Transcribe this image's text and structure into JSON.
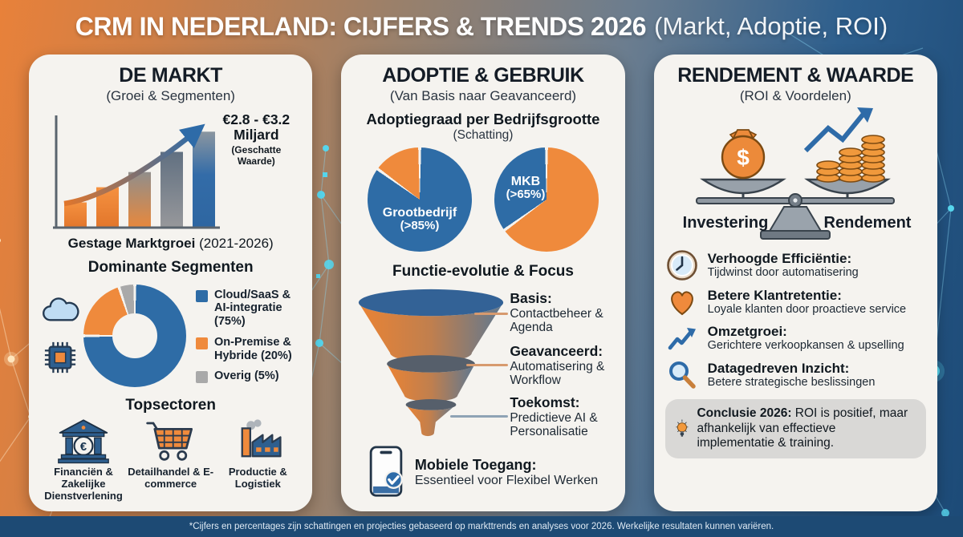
{
  "header": {
    "title_main": "CRM IN NEDERLAND: CIJFERS & TRENDS 2026",
    "title_suffix": "(Markt, Adoptie, ROI)"
  },
  "panels": {
    "markt": {
      "title": "DE MARKT",
      "subtitle": "(Groei & Segmenten)",
      "value_annotation": "€2.8 - €3.2 Miljard",
      "value_annotation_sub": "(Geschatte Waarde)",
      "growth_caption": "Gestage Marktgroei",
      "growth_caption_years": " (2021-2026)",
      "segments_title": "Dominante Segmenten",
      "topsectors_title": "Topsectoren",
      "sectors": [
        {
          "label": "Financiën & Zakelijke Dienstverlening"
        },
        {
          "label": "Detailhandel & E-commerce"
        },
        {
          "label": "Productie & Logistiek"
        }
      ]
    },
    "adoptie": {
      "title": "ADOPTIE & GEBRUIK",
      "subtitle": "(Van Basis naar Geavanceerd)",
      "adoption_title": "Adoptiegraad per Bedrijfsgrootte",
      "adoption_subtitle": "(Schatting)",
      "funnel_title": "Functie-evolutie & Focus",
      "funnel_stages": [
        {
          "label": "Basis:",
          "desc": "Contactbeheer & Agenda"
        },
        {
          "label": "Geavanceerd:",
          "desc": "Automatisering & Workflow"
        },
        {
          "label": "Toekomst:",
          "desc": "Predictieve AI & Personalisatie"
        }
      ],
      "mobile_title": "Mobiele Toegang:",
      "mobile_desc": "Essentieel voor Flexibel Werken"
    },
    "rendement": {
      "title": "RENDEMENT & WAARDE",
      "subtitle": "(ROI & Voordelen)",
      "scale_left_label": "Investering",
      "scale_right_label": "Rendement",
      "benefits": [
        {
          "title": "Verhoogde Efficiëntie:",
          "desc": "Tijdwinst door automatisering"
        },
        {
          "title": "Betere Klantretentie:",
          "desc": "Loyale klanten door proactieve service"
        },
        {
          "title": "Omzetgroei:",
          "desc": "Gerichtere verkoopkansen & upselling"
        },
        {
          "title": "Datagedreven Inzicht:",
          "desc": "Betere strategische beslissingen"
        }
      ],
      "conclusion_label": "Conclusie 2026:",
      "conclusion_text": " ROI is positief, maar afhankelijk van effectieve implementatie & training."
    }
  },
  "footer": {
    "disclaimer": "*Cijfers en percentages zijn schattingen en projecties gebaseerd op markttrends en analyses voor 2026. Werkelijke resultaten kunnen variëren."
  },
  "colors": {
    "blue": "#2e6ca6",
    "orange": "#ef8a3c",
    "gray": "#a9a9a9",
    "panel_bg": "#f5f3ef",
    "footer_bg": "#1d4a74"
  },
  "chart_data": [
    {
      "id": "marktgroei",
      "type": "bar",
      "title": "Gestage Marktgroei (2021-2026)",
      "categories": [
        "",
        "",
        "",
        "",
        ""
      ],
      "values": [
        25,
        40,
        55,
        75,
        95
      ],
      "xlabel": "",
      "ylabel": "",
      "ylim": [
        0,
        100
      ],
      "grid": false,
      "annotation": "€2.8 - €3.2 Miljard (Geschatte Waarde)"
    },
    {
      "id": "dominante-segmenten",
      "type": "pie",
      "donut": true,
      "title": "Dominante Segmenten",
      "labels": [
        "Cloud/SaaS & AI-integratie (75%)",
        "On-Premise & Hybride (20%)",
        "Overig (5%)"
      ],
      "values": [
        75,
        20,
        5
      ],
      "colors": [
        "#2e6ca6",
        "#ef8a3c",
        "#a9a9a9"
      ],
      "legend_position": "right"
    },
    {
      "id": "adoptie-grootbedrijf",
      "type": "pie",
      "labels": [
        "Grootbedrijf (>85%)",
        ""
      ],
      "values": [
        85,
        15
      ],
      "colors": [
        "#2e6ca6",
        "#ef8a3c"
      ],
      "label_line1": "Grootbedrijf",
      "label_line2": "(>85%)"
    },
    {
      "id": "adoptie-mkb",
      "type": "pie",
      "labels": [
        "MKB (>65%)",
        ""
      ],
      "values": [
        65,
        35
      ],
      "colors": [
        "#ef8a3c",
        "#2e6ca6"
      ],
      "label_line1": "MKB",
      "label_line2": "(>65%)"
    }
  ]
}
